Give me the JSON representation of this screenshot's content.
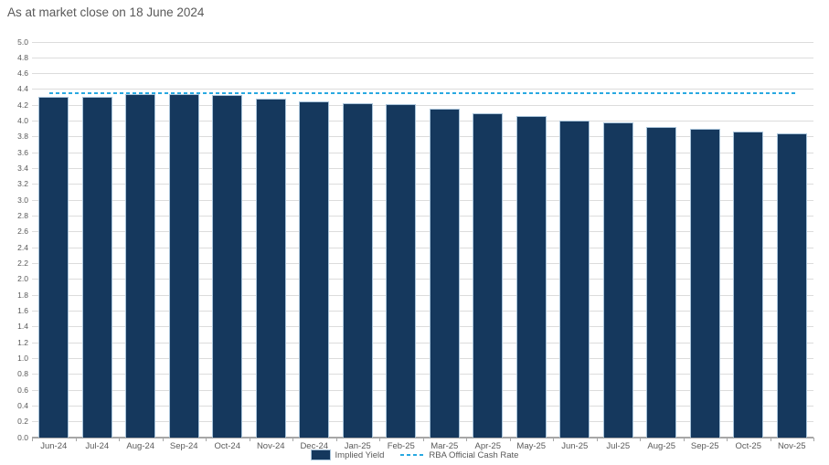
{
  "title": "As at market close on 18 June 2024",
  "chart_data": {
    "type": "bar",
    "title": "As at market close on 18 June 2024",
    "categories": [
      "Jun-24",
      "Jul-24",
      "Aug-24",
      "Sep-24",
      "Oct-24",
      "Nov-24",
      "Dec-24",
      "Jan-25",
      "Feb-25",
      "Mar-25",
      "Apr-25",
      "May-25",
      "Jun-25",
      "Jul-25",
      "Aug-25",
      "Sep-25",
      "Oct-25",
      "Nov-25"
    ],
    "series": [
      {
        "name": "Implied Yield",
        "type": "bar",
        "color": "#15385d",
        "values": [
          4.31,
          4.31,
          4.34,
          4.34,
          4.33,
          4.29,
          4.25,
          4.23,
          4.21,
          4.16,
          4.1,
          4.06,
          4.01,
          3.98,
          3.93,
          3.9,
          3.87,
          3.84
        ]
      },
      {
        "name": "RBA Official Cash Rate",
        "type": "dashed-line",
        "color": "#29a9e1",
        "value": 4.35
      }
    ],
    "xlabel": "",
    "ylabel": "",
    "ylim": [
      0.0,
      5.0
    ],
    "ytick_step": 0.2,
    "ytick_labels": [
      "0.0",
      "0.2",
      "0.4",
      "0.6",
      "0.8",
      "1.0",
      "1.2",
      "1.4",
      "1.6",
      "1.8",
      "2.0",
      "2.2",
      "2.4",
      "2.6",
      "2.8",
      "3.0",
      "3.2",
      "3.4",
      "3.6",
      "3.8",
      "4.0",
      "4.2",
      "4.4",
      "4.6",
      "4.8",
      "5.0"
    ],
    "grid": true,
    "legend_position": "bottom"
  },
  "legend": {
    "implied_yield_label": "Implied Yield",
    "rba_label": "RBA Official Cash Rate"
  },
  "colors": {
    "bar_fill": "#15385d",
    "bar_border": "#a9c4da",
    "rba_line": "#29a9e1",
    "gridline": "#dcdcdc",
    "axis_line": "#a6a6a6",
    "text": "#595959",
    "background": "#ffffff"
  }
}
